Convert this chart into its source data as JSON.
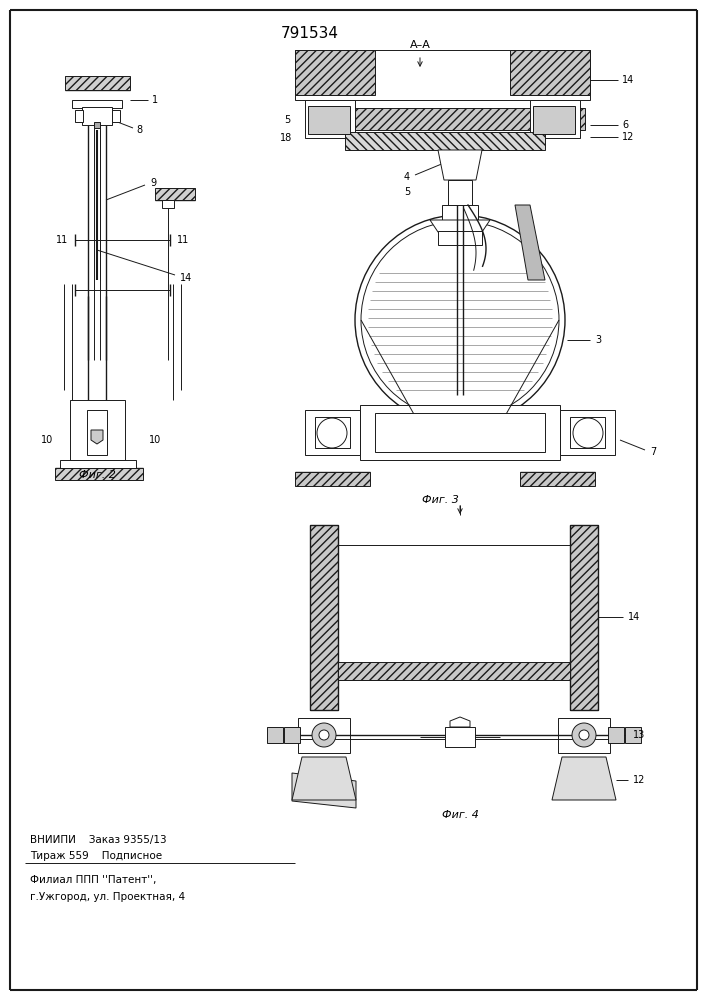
{
  "title": "791534",
  "section_label": "A–A",
  "fig2_label": "Фиг. 2",
  "fig3_label": "Фиг. 3",
  "fig4_label": "Фиг. 4",
  "footer_line1": "ВНИИПИ    Заказ 9355/13",
  "footer_line2": "Тираж 559    Подписное",
  "footer_line3": "Филиал ППП ''Патент'',",
  "footer_line4": "г.Ужгород, ул. Проектная, 4",
  "bg_color": "#ffffff",
  "line_color": "#1a1a1a"
}
